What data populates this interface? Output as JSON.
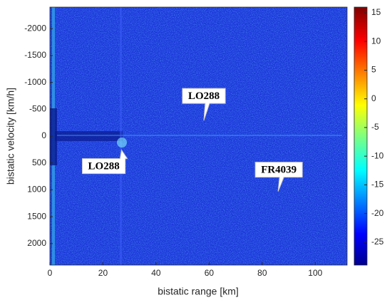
{
  "chart_data": {
    "type": "heatmap",
    "x_label": "bistatic range [km]",
    "y_label": "bistatic velocity [km/h]",
    "xlim": [
      0,
      112
    ],
    "xticks": [
      0,
      20,
      40,
      60,
      80,
      100
    ],
    "ylim": [
      -2400,
      2400
    ],
    "yticks": [
      -2000,
      -1500,
      -1000,
      -500,
      0,
      500,
      1000,
      1500,
      2000
    ],
    "y_reversed": true,
    "colormap": "jet",
    "clim": [
      -29,
      16
    ],
    "cticks": [
      -25,
      -20,
      -15,
      -10,
      -5,
      0,
      5,
      10,
      15
    ],
    "annotations": [
      {
        "text": "LO288",
        "x": 58,
        "y": -290
      },
      {
        "text": "LO288",
        "x": 27,
        "y": 260
      },
      {
        "text": "FR4039",
        "x": 86,
        "y": 1030
      }
    ]
  }
}
